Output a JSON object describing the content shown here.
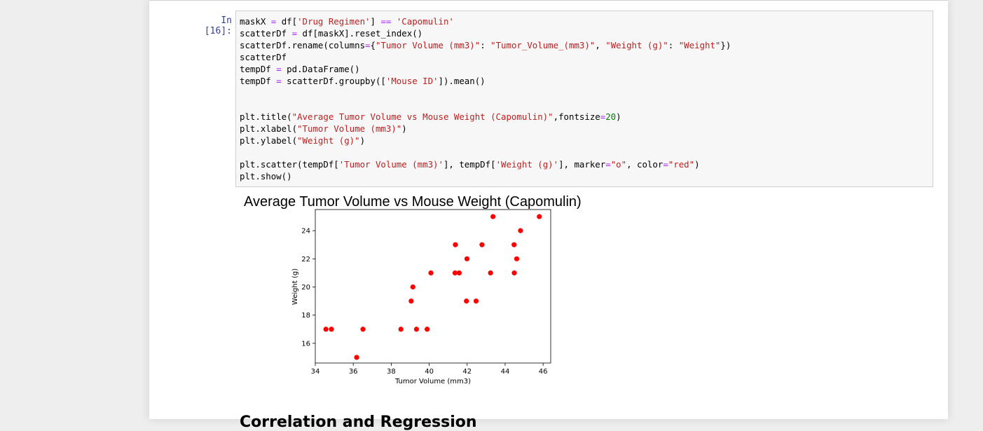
{
  "cell": {
    "prompt": "In [16]:",
    "code_lines": [
      [
        [
          "t",
          "maskX "
        ],
        [
          "o",
          "="
        ],
        [
          "t",
          " df["
        ],
        [
          "s",
          "'Drug Regimen'"
        ],
        [
          "t",
          "] "
        ],
        [
          "o",
          "=="
        ],
        [
          "t",
          " "
        ],
        [
          "s",
          "'Capomulin'"
        ]
      ],
      [
        [
          "t",
          "scatterDf "
        ],
        [
          "o",
          "="
        ],
        [
          "t",
          " df[maskX].reset_index()"
        ]
      ],
      [
        [
          "t",
          "scatterDf.rename(columns"
        ],
        [
          "o",
          "="
        ],
        [
          "t",
          "{"
        ],
        [
          "s",
          "\"Tumor Volume (mm3)\""
        ],
        [
          "t",
          ": "
        ],
        [
          "s",
          "\"Tumor_Volume_(mm3)\""
        ],
        [
          "t",
          ", "
        ],
        [
          "s",
          "\"Weight (g)\""
        ],
        [
          "t",
          ": "
        ],
        [
          "s",
          "\"Weight\""
        ],
        [
          "t",
          "})"
        ]
      ],
      [
        [
          "t",
          "scatterDf"
        ]
      ],
      [
        [
          "t",
          "tempDf "
        ],
        [
          "o",
          "="
        ],
        [
          "t",
          " pd.DataFrame()"
        ]
      ],
      [
        [
          "t",
          "tempDf "
        ],
        [
          "o",
          "="
        ],
        [
          "t",
          " scatterDf.groupby(["
        ],
        [
          "s",
          "'Mouse ID'"
        ],
        [
          "t",
          "]).mean()"
        ]
      ],
      [
        [
          "t",
          ""
        ]
      ],
      [
        [
          "t",
          ""
        ]
      ],
      [
        [
          "t",
          "plt.title("
        ],
        [
          "s",
          "\"Average Tumor Volume vs Mouse Weight (Capomulin)\""
        ],
        [
          "t",
          ",fontsize"
        ],
        [
          "o",
          "="
        ],
        [
          "n",
          "20"
        ],
        [
          "t",
          ")"
        ]
      ],
      [
        [
          "t",
          "plt.xlabel("
        ],
        [
          "s",
          "\"Tumor Volume (mm3)\""
        ],
        [
          "t",
          ")"
        ]
      ],
      [
        [
          "t",
          "plt.ylabel("
        ],
        [
          "s",
          "\"Weight (g)\""
        ],
        [
          "t",
          ")"
        ]
      ],
      [
        [
          "t",
          ""
        ]
      ],
      [
        [
          "t",
          "plt.scatter(tempDf["
        ],
        [
          "s",
          "'Tumor Volume (mm3)'"
        ],
        [
          "t",
          "], tempDf["
        ],
        [
          "s",
          "'Weight (g)'"
        ],
        [
          "t",
          "], marker"
        ],
        [
          "o",
          "="
        ],
        [
          "s",
          "\"o\""
        ],
        [
          "t",
          ", color"
        ],
        [
          "o",
          "="
        ],
        [
          "s",
          "\"red\""
        ],
        [
          "t",
          ")"
        ]
      ],
      [
        [
          "t",
          "plt.show()"
        ]
      ]
    ]
  },
  "colors": {
    "marker": "#ff0000",
    "prompt": "#303f9f",
    "string": "#ba2121",
    "operator": "#aa22ff",
    "number": "#008000"
  },
  "chart_data": {
    "type": "scatter",
    "title": "Average Tumor Volume vs Mouse Weight (Capomulin)",
    "xlabel": "Tumor Volume (mm3)",
    "ylabel": "Weight (g)",
    "xlim": [
      34,
      46.4
    ],
    "ylim": [
      14.6,
      25.5
    ],
    "xticks": [
      34,
      36,
      38,
      40,
      42,
      44,
      46
    ],
    "yticks": [
      16,
      18,
      20,
      22,
      24
    ],
    "grid": false,
    "marker": "o",
    "color": "red",
    "x": [
      34.56,
      34.85,
      36.18,
      36.51,
      38.51,
      39.05,
      39.14,
      39.33,
      39.89,
      40.09,
      41.36,
      41.38,
      41.58,
      41.96,
      41.99,
      42.47,
      42.78,
      43.23,
      43.36,
      44.47,
      44.48,
      44.61,
      44.81,
      45.8
    ],
    "y": [
      17,
      17,
      15,
      17,
      17,
      19,
      20,
      17,
      17,
      21,
      21,
      23,
      21,
      19,
      22,
      19,
      23,
      21,
      25,
      23,
      21,
      22,
      24,
      25
    ]
  },
  "next_heading": "Correlation and Regression"
}
